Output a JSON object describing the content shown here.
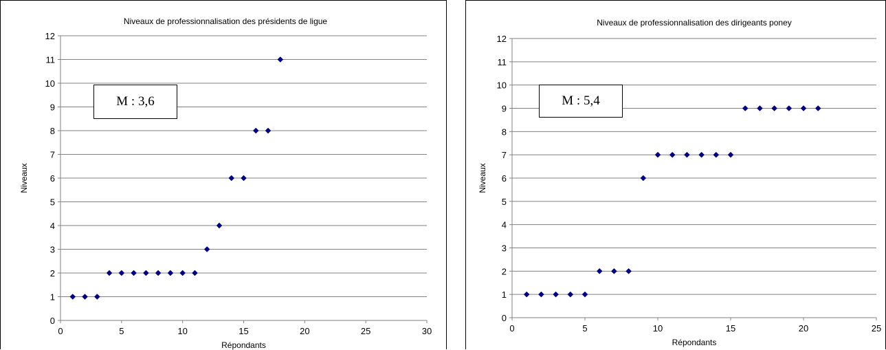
{
  "marker_color": "#00007f",
  "grid_color": "#808080",
  "chart_data": [
    {
      "type": "scatter",
      "title": "Niveaux de professionnalisation des présidents de ligue",
      "xlabel": "Répondants",
      "ylabel": "Niveaux",
      "xlim": [
        0,
        30
      ],
      "ylim": [
        0,
        12
      ],
      "xticks": [
        0,
        5,
        10,
        15,
        20,
        25,
        30
      ],
      "yticks": [
        0,
        1,
        2,
        3,
        4,
        5,
        6,
        7,
        8,
        9,
        10,
        11,
        12
      ],
      "grid": "horizontal",
      "annotation": "M : 3,6",
      "x": [
        1,
        2,
        3,
        4,
        5,
        6,
        7,
        8,
        9,
        10,
        11,
        12,
        13,
        14,
        15,
        16,
        17,
        18
      ],
      "y": [
        1,
        1,
        1,
        2,
        2,
        2,
        2,
        2,
        2,
        2,
        2,
        3,
        4,
        6,
        6,
        8,
        8,
        11
      ]
    },
    {
      "type": "scatter",
      "title": "Niveaux de professionnalisation des dirigeants poney",
      "xlabel": "Répondants",
      "ylabel": "Niveaux",
      "xlim": [
        0,
        25
      ],
      "ylim": [
        0,
        12
      ],
      "xticks": [
        0,
        5,
        10,
        15,
        20,
        25
      ],
      "yticks": [
        0,
        1,
        2,
        3,
        4,
        5,
        6,
        7,
        8,
        9,
        10,
        11,
        12
      ],
      "grid": "horizontal",
      "annotation": "M : 5,4",
      "x": [
        1,
        2,
        3,
        4,
        5,
        6,
        7,
        8,
        9,
        10,
        11,
        12,
        13,
        14,
        15,
        16,
        17,
        18,
        19,
        20,
        21
      ],
      "y": [
        1,
        1,
        1,
        1,
        1,
        2,
        2,
        2,
        6,
        7,
        7,
        7,
        7,
        7,
        7,
        9,
        9,
        9,
        9,
        9,
        9
      ]
    }
  ]
}
